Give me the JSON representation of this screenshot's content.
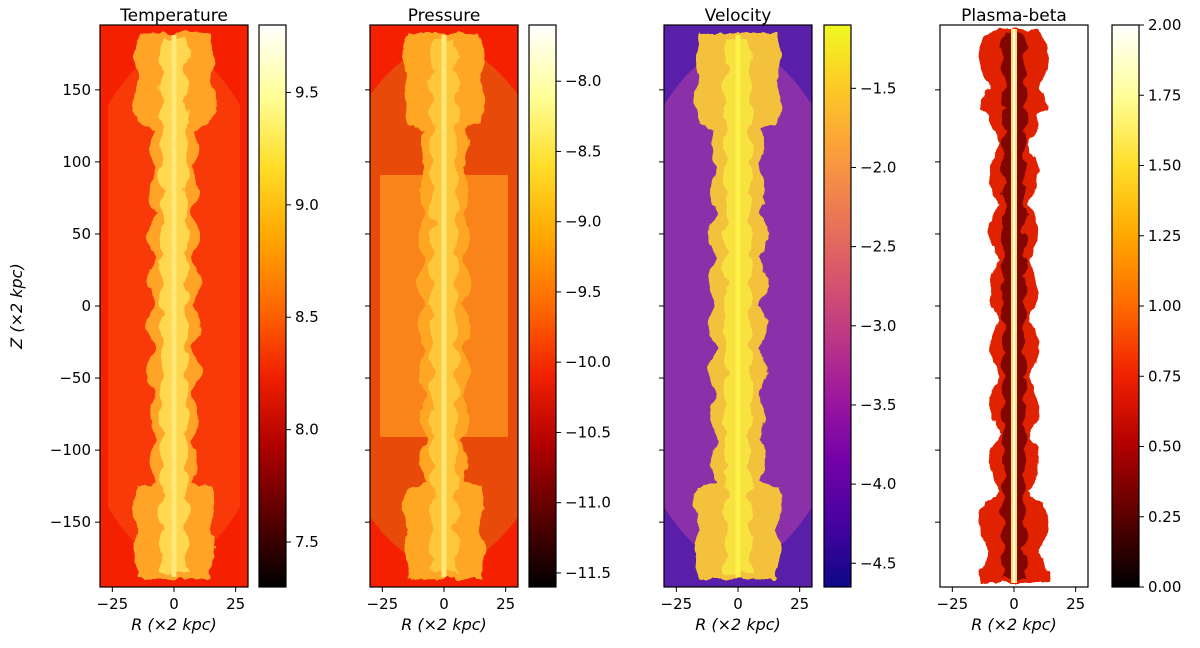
{
  "chart_data": [
    {
      "type": "heatmap",
      "title": "Temperature",
      "xlabel": "R (×2 kpc)",
      "ylabel": "Z (×2 kpc)",
      "xlim": [
        -30,
        30
      ],
      "ylim": [
        -195,
        195
      ],
      "xticks": [
        -25,
        0,
        25
      ],
      "yticks": [
        150,
        100,
        50,
        0,
        -50,
        -100,
        -150
      ],
      "colormap": "hot",
      "colorbar": {
        "range": [
          7.3,
          9.8
        ],
        "ticks": [
          "9.5",
          "9.0",
          "8.5",
          "8.0",
          "7.5"
        ],
        "tick_values": [
          9.5,
          9.0,
          8.5,
          8.0,
          7.5
        ]
      },
      "background_color": "#f52000",
      "structure_colors": [
        "#ffc33a",
        "#ffa426",
        "#ffdd55"
      ]
    },
    {
      "type": "heatmap",
      "title": "Pressure",
      "xlabel": "R (×2 kpc)",
      "xlim": [
        -30,
        30
      ],
      "ylim": [
        -195,
        195
      ],
      "xticks": [
        -25,
        0,
        25
      ],
      "colormap": "hot",
      "colorbar": {
        "range": [
          -11.6,
          -7.6
        ],
        "ticks": [
          "−8.0",
          "−8.5",
          "−9.0",
          "−9.5",
          "−10.0",
          "−10.5",
          "−11.0",
          "−11.5"
        ],
        "tick_values": [
          -8.0,
          -8.5,
          -9.0,
          -9.5,
          -10.0,
          -10.5,
          -11.0,
          -11.5
        ]
      },
      "background_color": "#f52000",
      "structure_colors": [
        "#e84a0a",
        "#ffa624",
        "#ffcb3e"
      ]
    },
    {
      "type": "heatmap",
      "title": "Velocity",
      "xlabel": "R (×2 kpc)",
      "xlim": [
        -30,
        30
      ],
      "ylim": [
        -195,
        195
      ],
      "xticks": [
        -25,
        0,
        25
      ],
      "colormap": "plasma",
      "colorbar": {
        "range": [
          -4.65,
          -1.1
        ],
        "ticks": [
          "−1.5",
          "−2.0",
          "−2.5",
          "−3.0",
          "−3.5",
          "−4.0",
          "−4.5"
        ],
        "tick_values": [
          -1.5,
          -2.0,
          -2.5,
          -3.0,
          -3.5,
          -4.0,
          -4.5
        ]
      },
      "background_color": "#5a1fa8",
      "structure_colors": [
        "#9b3fa0",
        "#f3c13a",
        "#f8e640"
      ]
    },
    {
      "type": "heatmap",
      "title": "Plasma-beta",
      "xlabel": "R (×2 kpc)",
      "xlim": [
        -30,
        30
      ],
      "ylim": [
        -195,
        195
      ],
      "xticks": [
        -25,
        0,
        25
      ],
      "colormap": "hot",
      "colorbar": {
        "range": [
          0.0,
          2.0
        ],
        "ticks": [
          "2.00",
          "1.75",
          "1.50",
          "1.25",
          "1.00",
          "0.75",
          "0.50",
          "0.25",
          "0.00"
        ],
        "tick_values": [
          2.0,
          1.75,
          1.5,
          1.25,
          1.0,
          0.75,
          0.5,
          0.25,
          0.0
        ]
      },
      "background_color": "#ffffff",
      "structure_colors": [
        "#e02200",
        "#6a0000",
        "#ffb020"
      ]
    }
  ]
}
